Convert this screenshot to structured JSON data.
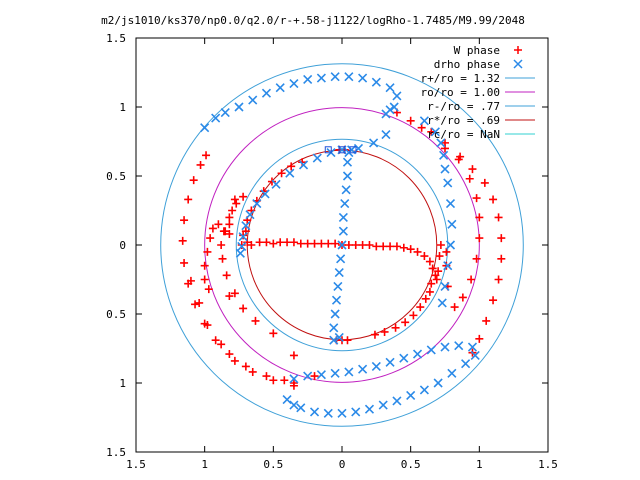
{
  "chart_data": {
    "type": "scatter",
    "title": "m2/js1010/ks370/np0.0/q2.0/r-+.58-j1122/logRho-1.7485/M9.99/2048",
    "xlabel": "",
    "ylabel": "",
    "xlim": [
      -1.5,
      1.5
    ],
    "ylim": [
      -1.5,
      1.5
    ],
    "xticks": [
      -1.5,
      -1,
      -0.5,
      0,
      0.5,
      1,
      1.5
    ],
    "xtick_labels": [
      "1.5",
      "1",
      "0.5",
      "0",
      "0.5",
      "1",
      "1.5"
    ],
    "yticks": [
      1.5,
      1,
      0.5,
      0,
      -0.5,
      -1,
      -1.5
    ],
    "ytick_labels": [
      "1.5",
      "1",
      "0.5",
      "0",
      "0.5",
      "1",
      "1.5"
    ],
    "grid": false,
    "legend_position": "top-right",
    "series": [
      {
        "name": "W phase",
        "marker": "+",
        "color": "#ff0000",
        "points": [
          [
            -0.72,
            0.07
          ],
          [
            -0.69,
            0.02
          ],
          [
            -0.66,
            0.0
          ],
          [
            -0.6,
            0.02
          ],
          [
            -0.55,
            0.02
          ],
          [
            -0.5,
            0.01
          ],
          [
            -0.45,
            0.02
          ],
          [
            -0.4,
            0.02
          ],
          [
            -0.35,
            0.02
          ],
          [
            -0.3,
            0.01
          ],
          [
            -0.25,
            0.01
          ],
          [
            -0.2,
            0.01
          ],
          [
            -0.15,
            0.01
          ],
          [
            -0.1,
            0.01
          ],
          [
            -0.05,
            0.01
          ],
          [
            0.0,
            0.0
          ],
          [
            0.05,
            0.0
          ],
          [
            0.1,
            0.0
          ],
          [
            0.15,
            0.0
          ],
          [
            0.2,
            0.0
          ],
          [
            0.25,
            -0.01
          ],
          [
            0.3,
            -0.01
          ],
          [
            0.35,
            -0.01
          ],
          [
            0.4,
            -0.01
          ],
          [
            0.45,
            -0.02
          ],
          [
            0.5,
            -0.03
          ],
          [
            0.55,
            -0.05
          ],
          [
            0.6,
            -0.08
          ],
          [
            0.64,
            -0.12
          ],
          [
            0.66,
            -0.17
          ],
          [
            0.68,
            -0.22
          ],
          [
            0.69,
            -0.25
          ],
          [
            0.7,
            -0.19
          ],
          [
            0.71,
            -0.08
          ],
          [
            0.72,
            0.0
          ],
          [
            -0.73,
            0.0
          ],
          [
            -0.7,
            0.1
          ],
          [
            -0.69,
            0.18
          ],
          [
            -0.66,
            0.25
          ],
          [
            -0.62,
            0.32
          ],
          [
            -0.57,
            0.39
          ],
          [
            -0.51,
            0.46
          ],
          [
            -0.44,
            0.52
          ],
          [
            -0.37,
            0.57
          ],
          [
            -0.29,
            0.6
          ],
          [
            -0.02,
            0.69
          ],
          [
            0.02,
            0.69
          ],
          [
            0.65,
            -0.28
          ],
          [
            0.64,
            -0.34
          ],
          [
            0.61,
            -0.39
          ],
          [
            0.57,
            -0.45
          ],
          [
            0.52,
            -0.51
          ],
          [
            0.46,
            -0.56
          ],
          [
            0.39,
            -0.6
          ],
          [
            0.31,
            -0.63
          ],
          [
            0.24,
            -0.65
          ],
          [
            -0.04,
            -0.69
          ],
          [
            0.0,
            -0.69
          ],
          [
            0.04,
            -0.69
          ],
          [
            -0.72,
            0.35
          ],
          [
            -0.77,
            0.3
          ],
          [
            -0.82,
            0.2
          ],
          [
            -0.86,
            0.1
          ],
          [
            -0.88,
            0.0
          ],
          [
            -0.87,
            -0.1
          ],
          [
            -0.84,
            -0.22
          ],
          [
            -0.78,
            -0.35
          ],
          [
            -0.72,
            -0.46
          ],
          [
            -0.63,
            -0.55
          ],
          [
            -0.5,
            -0.64
          ],
          [
            -0.35,
            -0.8
          ],
          [
            -0.2,
            -0.95
          ],
          [
            -0.35,
            -1.0
          ],
          [
            -0.42,
            -0.98
          ],
          [
            -0.55,
            -0.95
          ],
          [
            -0.7,
            -0.88
          ],
          [
            -0.82,
            -0.79
          ],
          [
            -0.92,
            -0.69
          ],
          [
            -1.0,
            -0.57
          ],
          [
            -1.07,
            -0.43
          ],
          [
            -1.12,
            -0.28
          ],
          [
            -1.15,
            -0.13
          ],
          [
            -1.16,
            0.03
          ],
          [
            -1.15,
            0.18
          ],
          [
            -1.12,
            0.33
          ],
          [
            -1.08,
            0.47
          ],
          [
            -1.03,
            0.58
          ],
          [
            -0.99,
            0.65
          ],
          [
            -0.82,
            -0.37
          ],
          [
            -0.97,
            -0.32
          ],
          [
            -1.0,
            -0.25
          ],
          [
            -1.0,
            -0.15
          ],
          [
            -0.98,
            -0.05
          ],
          [
            -0.96,
            0.05
          ],
          [
            -0.94,
            0.12
          ],
          [
            -0.9,
            0.15
          ],
          [
            -0.85,
            0.1
          ],
          [
            -0.82,
            0.08
          ],
          [
            -0.82,
            0.15
          ],
          [
            -0.8,
            0.25
          ],
          [
            -0.78,
            0.33
          ],
          [
            -0.35,
            -1.02
          ],
          [
            -0.5,
            -0.98
          ],
          [
            -0.65,
            -0.92
          ],
          [
            -0.78,
            -0.84
          ],
          [
            -0.88,
            -0.72
          ],
          [
            -0.98,
            -0.58
          ],
          [
            -1.04,
            -0.42
          ],
          [
            -1.1,
            -0.26
          ],
          [
            0.4,
            0.96
          ],
          [
            0.5,
            0.9
          ],
          [
            0.58,
            0.85
          ],
          [
            0.65,
            0.82
          ],
          [
            0.75,
            0.74
          ],
          [
            0.85,
            0.62
          ],
          [
            0.93,
            0.48
          ],
          [
            0.98,
            0.34
          ],
          [
            1.0,
            0.2
          ],
          [
            1.0,
            0.05
          ],
          [
            0.98,
            -0.1
          ],
          [
            0.94,
            -0.25
          ],
          [
            0.88,
            -0.38
          ],
          [
            0.82,
            -0.45
          ],
          [
            0.77,
            -0.3
          ],
          [
            0.76,
            -0.15
          ],
          [
            0.76,
            -0.05
          ],
          [
            0.75,
            0.7
          ],
          [
            0.86,
            0.64
          ],
          [
            0.95,
            0.55
          ],
          [
            1.04,
            0.45
          ],
          [
            1.1,
            0.33
          ],
          [
            1.14,
            0.2
          ],
          [
            1.16,
            0.05
          ],
          [
            1.16,
            -0.1
          ],
          [
            1.14,
            -0.25
          ],
          [
            1.1,
            -0.4
          ],
          [
            1.05,
            -0.55
          ],
          [
            1.0,
            -0.68
          ],
          [
            0.95,
            -0.78
          ]
        ]
      },
      {
        "name": "drho phase",
        "marker": "x",
        "color": "#2b8ae8",
        "points": [
          [
            0.05,
            0.67
          ],
          [
            0.04,
            0.6
          ],
          [
            0.04,
            0.5
          ],
          [
            0.03,
            0.4
          ],
          [
            0.02,
            0.3
          ],
          [
            0.01,
            0.2
          ],
          [
            0.01,
            0.1
          ],
          [
            0.0,
            0.0
          ],
          [
            -0.01,
            -0.1
          ],
          [
            -0.02,
            -0.2
          ],
          [
            -0.03,
            -0.3
          ],
          [
            -0.04,
            -0.4
          ],
          [
            -0.05,
            -0.5
          ],
          [
            -0.06,
            -0.6
          ],
          [
            -0.06,
            -0.69
          ],
          [
            -0.02,
            -0.67
          ],
          [
            0.07,
            0.69
          ],
          [
            -0.74,
            -0.06
          ],
          [
            -0.73,
            -0.01
          ],
          [
            -0.72,
            0.06
          ],
          [
            -0.7,
            0.14
          ],
          [
            -0.67,
            0.22
          ],
          [
            -0.62,
            0.3
          ],
          [
            -0.56,
            0.37
          ],
          [
            -0.48,
            0.44
          ],
          [
            -0.38,
            0.52
          ],
          [
            -0.28,
            0.58
          ],
          [
            -0.18,
            0.63
          ],
          [
            -0.08,
            0.67
          ],
          [
            0.0,
            0.69
          ],
          [
            0.32,
            0.8
          ],
          [
            0.23,
            0.74
          ],
          [
            0.12,
            0.7
          ],
          [
            -1.0,
            0.85
          ],
          [
            -0.92,
            0.92
          ],
          [
            -0.85,
            0.96
          ],
          [
            -0.75,
            1.0
          ],
          [
            -0.65,
            1.05
          ],
          [
            -0.55,
            1.1
          ],
          [
            -0.45,
            1.14
          ],
          [
            -0.35,
            1.17
          ],
          [
            -0.25,
            1.2
          ],
          [
            -0.15,
            1.21
          ],
          [
            -0.05,
            1.22
          ],
          [
            0.05,
            1.22
          ],
          [
            0.15,
            1.21
          ],
          [
            0.25,
            1.18
          ],
          [
            0.35,
            1.14
          ],
          [
            0.4,
            1.08
          ],
          [
            0.38,
            1.0
          ],
          [
            0.35,
            0.98
          ],
          [
            0.32,
            0.95
          ],
          [
            -0.35,
            -0.97
          ],
          [
            -0.25,
            -0.95
          ],
          [
            -0.15,
            -0.94
          ],
          [
            -0.05,
            -0.93
          ],
          [
            0.05,
            -0.92
          ],
          [
            0.15,
            -0.9
          ],
          [
            0.25,
            -0.88
          ],
          [
            0.35,
            -0.85
          ],
          [
            0.45,
            -0.82
          ],
          [
            0.55,
            -0.79
          ],
          [
            0.65,
            -0.76
          ],
          [
            0.75,
            -0.74
          ],
          [
            0.85,
            -0.73
          ],
          [
            0.95,
            -0.74
          ],
          [
            -0.4,
            -1.12
          ],
          [
            -0.35,
            -1.16
          ],
          [
            -0.3,
            -1.18
          ],
          [
            -0.2,
            -1.21
          ],
          [
            -0.1,
            -1.22
          ],
          [
            0.0,
            -1.22
          ],
          [
            0.1,
            -1.21
          ],
          [
            0.2,
            -1.19
          ],
          [
            0.3,
            -1.16
          ],
          [
            0.4,
            -1.13
          ],
          [
            0.5,
            -1.09
          ],
          [
            0.6,
            -1.05
          ],
          [
            0.7,
            -1.0
          ],
          [
            0.8,
            -0.93
          ],
          [
            0.9,
            -0.86
          ],
          [
            0.97,
            -0.8
          ],
          [
            0.6,
            0.9
          ],
          [
            0.68,
            0.82
          ],
          [
            0.72,
            0.74
          ],
          [
            0.74,
            0.65
          ],
          [
            0.75,
            0.55
          ],
          [
            0.77,
            0.45
          ],
          [
            0.79,
            0.3
          ],
          [
            0.8,
            0.15
          ],
          [
            0.79,
            0.0
          ],
          [
            0.77,
            -0.15
          ],
          [
            0.75,
            -0.3
          ],
          [
            0.73,
            -0.42
          ]
        ]
      }
    ],
    "circles": [
      {
        "name": "r+/ro = 1.32",
        "radius": 1.32,
        "color": "#3fa0d8"
      },
      {
        "name": "ro/ro = 1.00",
        "radius": 1.0,
        "color": "#c020c0"
      },
      {
        "name": "r-/ro = .77",
        "radius": 0.77,
        "color": "#3fa0d8"
      },
      {
        "name": "r*/ro = .69",
        "radius": 0.69,
        "color": "#c01010"
      },
      {
        "name": "rc/ro = NaN",
        "radius": null,
        "color": "#30d0d0"
      }
    ],
    "square_markers": [
      {
        "x": -0.1,
        "y": 0.69
      },
      {
        "x": 0.0,
        "y": 0.69
      },
      {
        "x": 0.08,
        "y": 0.69
      }
    ]
  }
}
